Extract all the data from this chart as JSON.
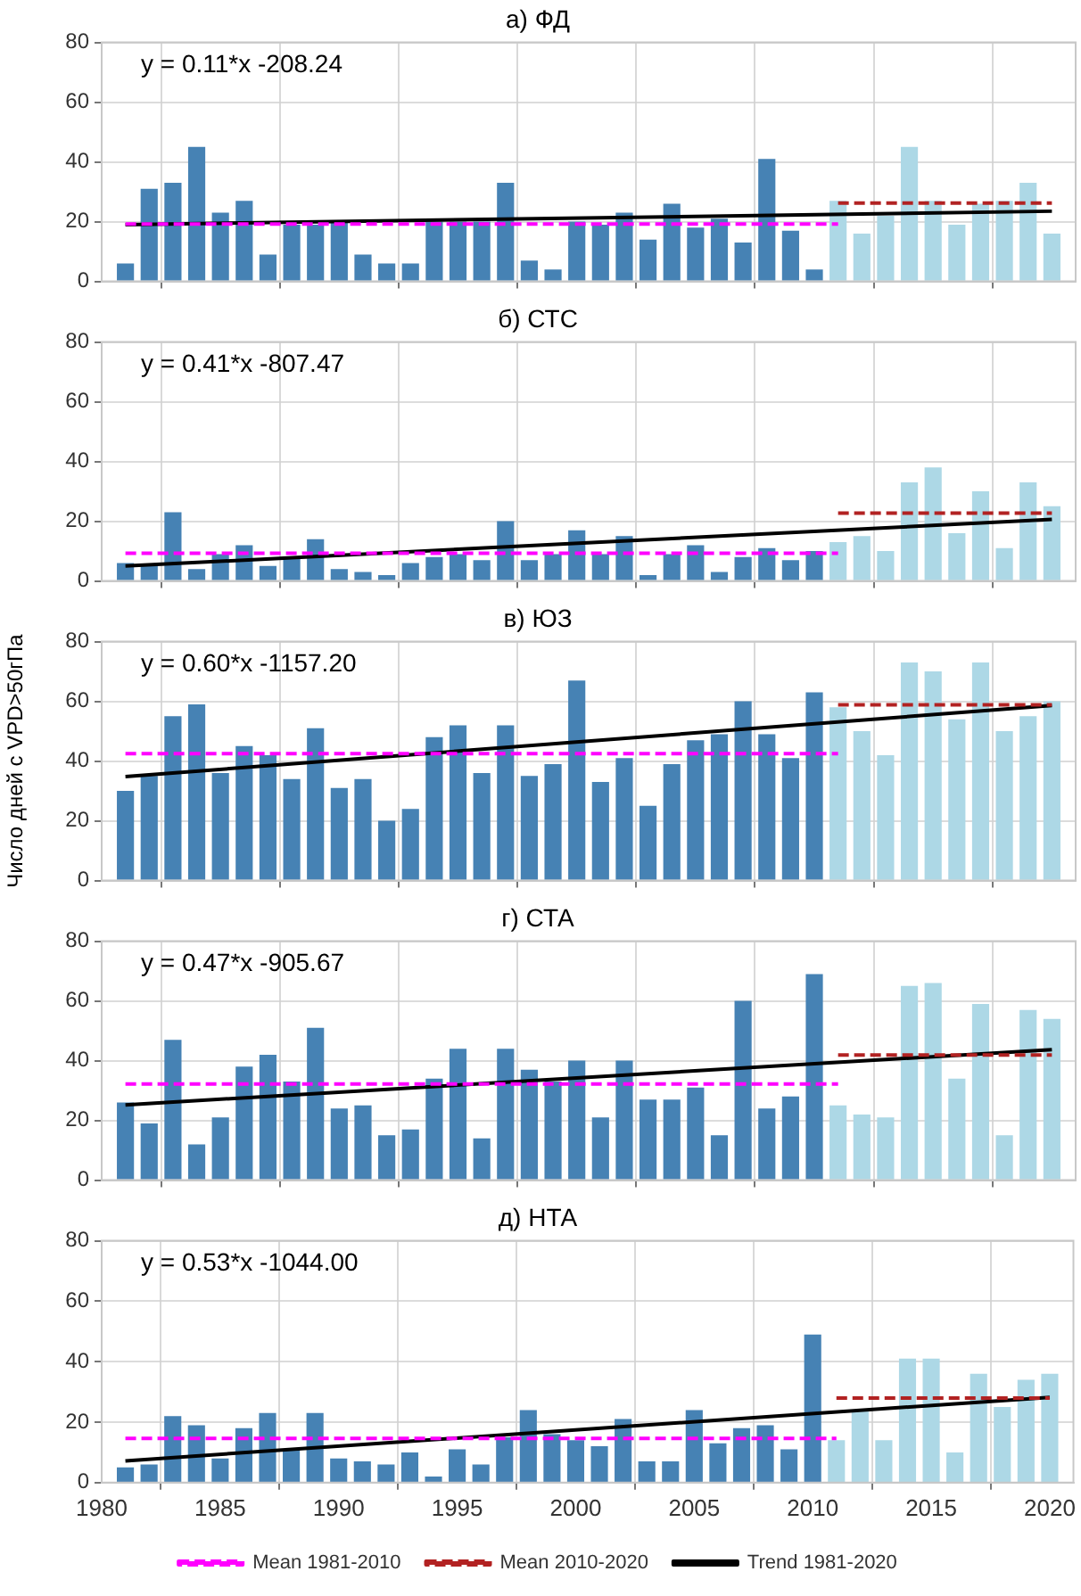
{
  "chart_data": [
    {
      "type": "bar",
      "title": "а) ФД",
      "annotations": [
        "y = 0.11*x -208.24"
      ],
      "x": [
        1981,
        1982,
        1983,
        1984,
        1985,
        1986,
        1987,
        1988,
        1989,
        1990,
        1991,
        1992,
        1993,
        1994,
        1995,
        1996,
        1997,
        1998,
        1999,
        2000,
        2001,
        2002,
        2003,
        2004,
        2005,
        2006,
        2007,
        2008,
        2009,
        2010,
        2011,
        2012,
        2013,
        2014,
        2015,
        2016,
        2017,
        2018,
        2019,
        2020
      ],
      "xlim": [
        1980,
        2021
      ],
      "xticks": [
        1980,
        1985,
        1990,
        1995,
        2000,
        2005,
        2010,
        2015,
        2020
      ],
      "ylim": [
        0,
        80
      ],
      "yticks": [
        0,
        20,
        40,
        60,
        80
      ],
      "grid": true,
      "legend": false,
      "tick_labels": "y",
      "marker": "none",
      "series": [
        {
          "values": [
            6,
            31,
            33,
            45,
            23,
            27,
            9,
            19,
            19,
            20,
            9,
            6,
            6,
            20,
            20,
            20,
            33,
            7,
            4,
            20,
            19,
            23,
            14,
            26,
            18,
            21,
            13,
            41,
            17,
            4,
            27,
            16,
            22,
            45,
            27,
            19,
            26,
            27,
            33,
            16
          ],
          "colors": [
            "#4682b4",
            "#4682b4",
            "#4682b4",
            "#4682b4",
            "#4682b4",
            "#4682b4",
            "#4682b4",
            "#4682b4",
            "#4682b4",
            "#4682b4",
            "#4682b4",
            "#4682b4",
            "#4682b4",
            "#4682b4",
            "#4682b4",
            "#4682b4",
            "#4682b4",
            "#4682b4",
            "#4682b4",
            "#4682b4",
            "#4682b4",
            "#4682b4",
            "#4682b4",
            "#4682b4",
            "#4682b4",
            "#4682b4",
            "#4682b4",
            "#4682b4",
            "#4682b4",
            "#4682b4",
            "#add8e6",
            "#add8e6",
            "#add8e6",
            "#add8e6",
            "#add8e6",
            "#add8e6",
            "#add8e6",
            "#add8e6",
            "#add8e6",
            "#add8e6"
          ]
        },
        {
          "type": "line",
          "color": "#ff00ff",
          "line_style": "dashed",
          "x": [
            1981,
            2011
          ],
          "values": [
            19.2,
            19.2
          ]
        },
        {
          "type": "line",
          "color": "#b22222",
          "line_style": "dashed",
          "x": [
            2011,
            2020
          ],
          "values": [
            26.2,
            26.2
          ]
        },
        {
          "type": "line",
          "color": "#000000",
          "line_style": "solid",
          "x": [
            1981,
            2020
          ],
          "values": [
            19,
            23.5
          ]
        }
      ]
    },
    {
      "type": "bar",
      "title": "б) СТС",
      "annotations": [
        "y = 0.41*x -807.47"
      ],
      "x": [
        1981,
        1982,
        1983,
        1984,
        1985,
        1986,
        1987,
        1988,
        1989,
        1990,
        1991,
        1992,
        1993,
        1994,
        1995,
        1996,
        1997,
        1998,
        1999,
        2000,
        2001,
        2002,
        2003,
        2004,
        2005,
        2006,
        2007,
        2008,
        2009,
        2010,
        2011,
        2012,
        2013,
        2014,
        2015,
        2016,
        2017,
        2018,
        2019,
        2020
      ],
      "xlim": [
        1980,
        2021
      ],
      "xticks": [
        1980,
        1985,
        1990,
        1995,
        2000,
        2005,
        2010,
        2015,
        2020
      ],
      "ylim": [
        0,
        80
      ],
      "yticks": [
        0,
        20,
        40,
        60,
        80
      ],
      "grid": true,
      "legend": false,
      "tick_labels": "y",
      "marker": "none",
      "series": [
        {
          "values": [
            6,
            5,
            23,
            4,
            9,
            12,
            5,
            8,
            14,
            4,
            3,
            2,
            6,
            8,
            9,
            7,
            20,
            7,
            9,
            17,
            9,
            15,
            2,
            9,
            12,
            3,
            8,
            11,
            7,
            10,
            13,
            15,
            10,
            33,
            38,
            16,
            30,
            11,
            33,
            25
          ],
          "colors": [
            "#4682b4",
            "#4682b4",
            "#4682b4",
            "#4682b4",
            "#4682b4",
            "#4682b4",
            "#4682b4",
            "#4682b4",
            "#4682b4",
            "#4682b4",
            "#4682b4",
            "#4682b4",
            "#4682b4",
            "#4682b4",
            "#4682b4",
            "#4682b4",
            "#4682b4",
            "#4682b4",
            "#4682b4",
            "#4682b4",
            "#4682b4",
            "#4682b4",
            "#4682b4",
            "#4682b4",
            "#4682b4",
            "#4682b4",
            "#4682b4",
            "#4682b4",
            "#4682b4",
            "#4682b4",
            "#add8e6",
            "#add8e6",
            "#add8e6",
            "#add8e6",
            "#add8e6",
            "#add8e6",
            "#add8e6",
            "#add8e6",
            "#add8e6",
            "#add8e6"
          ]
        },
        {
          "type": "line",
          "color": "#ff00ff",
          "line_style": "dashed",
          "x": [
            1981,
            2011
          ],
          "values": [
            9.3,
            9.3
          ]
        },
        {
          "type": "line",
          "color": "#b22222",
          "line_style": "dashed",
          "x": [
            2011,
            2020
          ],
          "values": [
            22.7,
            22.7
          ]
        },
        {
          "type": "line",
          "color": "#000000",
          "line_style": "solid",
          "x": [
            1981,
            2020
          ],
          "values": [
            5,
            20.6
          ]
        }
      ]
    },
    {
      "type": "bar",
      "title": "в) ЮЗ",
      "ylabel": "Число дней с VPD>50гПа",
      "annotations": [
        "y = 0.60*x -1157.20"
      ],
      "x": [
        1981,
        1982,
        1983,
        1984,
        1985,
        1986,
        1987,
        1988,
        1989,
        1990,
        1991,
        1992,
        1993,
        1994,
        1995,
        1996,
        1997,
        1998,
        1999,
        2000,
        2001,
        2002,
        2003,
        2004,
        2005,
        2006,
        2007,
        2008,
        2009,
        2010,
        2011,
        2012,
        2013,
        2014,
        2015,
        2016,
        2017,
        2018,
        2019,
        2020
      ],
      "xlim": [
        1980,
        2021
      ],
      "xticks": [
        1980,
        1985,
        1990,
        1995,
        2000,
        2005,
        2010,
        2015,
        2020
      ],
      "ylim": [
        0,
        80
      ],
      "yticks": [
        0,
        20,
        40,
        60,
        80
      ],
      "grid": true,
      "legend": false,
      "tick_labels": "y",
      "marker": "none",
      "series": [
        {
          "values": [
            30,
            35,
            55,
            59,
            36,
            45,
            42,
            34,
            51,
            31,
            34,
            20,
            24,
            48,
            52,
            36,
            52,
            35,
            39,
            67,
            33,
            41,
            25,
            39,
            47,
            49,
            60,
            49,
            41,
            63,
            58,
            50,
            42,
            73,
            70,
            54,
            73,
            50,
            55,
            60
          ],
          "colors": [
            "#4682b4",
            "#4682b4",
            "#4682b4",
            "#4682b4",
            "#4682b4",
            "#4682b4",
            "#4682b4",
            "#4682b4",
            "#4682b4",
            "#4682b4",
            "#4682b4",
            "#4682b4",
            "#4682b4",
            "#4682b4",
            "#4682b4",
            "#4682b4",
            "#4682b4",
            "#4682b4",
            "#4682b4",
            "#4682b4",
            "#4682b4",
            "#4682b4",
            "#4682b4",
            "#4682b4",
            "#4682b4",
            "#4682b4",
            "#4682b4",
            "#4682b4",
            "#4682b4",
            "#4682b4",
            "#add8e6",
            "#add8e6",
            "#add8e6",
            "#add8e6",
            "#add8e6",
            "#add8e6",
            "#add8e6",
            "#add8e6",
            "#add8e6",
            "#add8e6"
          ]
        },
        {
          "type": "line",
          "color": "#ff00ff",
          "line_style": "dashed",
          "x": [
            1981,
            2011
          ],
          "values": [
            42.5,
            42.5
          ]
        },
        {
          "type": "line",
          "color": "#b22222",
          "line_style": "dashed",
          "x": [
            2011,
            2020
          ],
          "values": [
            58.8,
            58.8
          ]
        },
        {
          "type": "line",
          "color": "#000000",
          "line_style": "solid",
          "x": [
            1981,
            2020
          ],
          "values": [
            34.8,
            58.6
          ]
        }
      ]
    },
    {
      "type": "bar",
      "title": "г) СТА",
      "annotations": [
        "y = 0.47*x -905.67"
      ],
      "x": [
        1981,
        1982,
        1983,
        1984,
        1985,
        1986,
        1987,
        1988,
        1989,
        1990,
        1991,
        1992,
        1993,
        1994,
        1995,
        1996,
        1997,
        1998,
        1999,
        2000,
        2001,
        2002,
        2003,
        2004,
        2005,
        2006,
        2007,
        2008,
        2009,
        2010,
        2011,
        2012,
        2013,
        2014,
        2015,
        2016,
        2017,
        2018,
        2019,
        2020
      ],
      "xlim": [
        1980,
        2021
      ],
      "xticks": [
        1980,
        1985,
        1990,
        1995,
        2000,
        2005,
        2010,
        2015,
        2020
      ],
      "ylim": [
        0,
        80
      ],
      "yticks": [
        0,
        20,
        40,
        60,
        80
      ],
      "grid": true,
      "legend": false,
      "tick_labels": "y",
      "marker": "none",
      "series": [
        {
          "values": [
            26,
            19,
            47,
            12,
            21,
            38,
            42,
            33,
            51,
            24,
            25,
            15,
            17,
            34,
            44,
            14,
            44,
            37,
            33,
            40,
            21,
            40,
            27,
            27,
            31,
            15,
            60,
            24,
            28,
            69,
            25,
            22,
            21,
            65,
            66,
            34,
            59,
            15,
            57,
            54
          ],
          "colors": [
            "#4682b4",
            "#4682b4",
            "#4682b4",
            "#4682b4",
            "#4682b4",
            "#4682b4",
            "#4682b4",
            "#4682b4",
            "#4682b4",
            "#4682b4",
            "#4682b4",
            "#4682b4",
            "#4682b4",
            "#4682b4",
            "#4682b4",
            "#4682b4",
            "#4682b4",
            "#4682b4",
            "#4682b4",
            "#4682b4",
            "#4682b4",
            "#4682b4",
            "#4682b4",
            "#4682b4",
            "#4682b4",
            "#4682b4",
            "#4682b4",
            "#4682b4",
            "#4682b4",
            "#4682b4",
            "#add8e6",
            "#add8e6",
            "#add8e6",
            "#add8e6",
            "#add8e6",
            "#add8e6",
            "#add8e6",
            "#add8e6",
            "#add8e6",
            "#add8e6"
          ]
        },
        {
          "type": "line",
          "color": "#ff00ff",
          "line_style": "dashed",
          "x": [
            1981,
            2011
          ],
          "values": [
            32.2,
            32.2
          ]
        },
        {
          "type": "line",
          "color": "#b22222",
          "line_style": "dashed",
          "x": [
            2011,
            2020
          ],
          "values": [
            41.9,
            41.9
          ]
        },
        {
          "type": "line",
          "color": "#000000",
          "line_style": "solid",
          "x": [
            1981,
            2020
          ],
          "values": [
            25.2,
            43.7
          ]
        }
      ]
    },
    {
      "type": "bar",
      "title": "д) НТА",
      "annotations": [
        "y = 0.53*x -1044.00"
      ],
      "x": [
        1981,
        1982,
        1983,
        1984,
        1985,
        1986,
        1987,
        1988,
        1989,
        1990,
        1991,
        1992,
        1993,
        1994,
        1995,
        1996,
        1997,
        1998,
        1999,
        2000,
        2001,
        2002,
        2003,
        2004,
        2005,
        2006,
        2007,
        2008,
        2009,
        2010,
        2011,
        2012,
        2013,
        2014,
        2015,
        2016,
        2017,
        2018,
        2019,
        2020
      ],
      "xlim": [
        1980,
        2021
      ],
      "xticks": [
        1980,
        1985,
        1990,
        1995,
        2000,
        2005,
        2010,
        2015,
        2020
      ],
      "ylim": [
        0,
        80
      ],
      "yticks": [
        0,
        20,
        40,
        60,
        80
      ],
      "grid": true,
      "legend": "bottom",
      "marker": "none",
      "series": [
        {
          "values": [
            5,
            6,
            22,
            19,
            8,
            18,
            23,
            11,
            23,
            8,
            7,
            6,
            10,
            2,
            11,
            6,
            15,
            24,
            16,
            14,
            12,
            21,
            7,
            7,
            24,
            13,
            18,
            19,
            11,
            49,
            14,
            24,
            14,
            41,
            41,
            10,
            36,
            25,
            34,
            36
          ],
          "colors": [
            "#4682b4",
            "#4682b4",
            "#4682b4",
            "#4682b4",
            "#4682b4",
            "#4682b4",
            "#4682b4",
            "#4682b4",
            "#4682b4",
            "#4682b4",
            "#4682b4",
            "#4682b4",
            "#4682b4",
            "#4682b4",
            "#4682b4",
            "#4682b4",
            "#4682b4",
            "#4682b4",
            "#4682b4",
            "#4682b4",
            "#4682b4",
            "#4682b4",
            "#4682b4",
            "#4682b4",
            "#4682b4",
            "#4682b4",
            "#4682b4",
            "#4682b4",
            "#4682b4",
            "#4682b4",
            "#add8e6",
            "#add8e6",
            "#add8e6",
            "#add8e6",
            "#add8e6",
            "#add8e6",
            "#add8e6",
            "#add8e6",
            "#add8e6",
            "#add8e6"
          ]
        },
        {
          "type": "line",
          "name": "Mean 1981-2010",
          "color": "#ff00ff",
          "line_style": "dashed",
          "x": [
            1981,
            2011
          ],
          "values": [
            14.6,
            14.6
          ]
        },
        {
          "type": "line",
          "name": "Mean 2010-2020",
          "color": "#b22222",
          "line_style": "dashed",
          "x": [
            2011,
            2020
          ],
          "values": [
            28,
            28
          ]
        },
        {
          "type": "line",
          "name": "Trend 1981-2020",
          "color": "#000000",
          "line_style": "solid",
          "x": [
            1981,
            2020
          ],
          "values": [
            7.2,
            28.2
          ]
        }
      ]
    }
  ]
}
